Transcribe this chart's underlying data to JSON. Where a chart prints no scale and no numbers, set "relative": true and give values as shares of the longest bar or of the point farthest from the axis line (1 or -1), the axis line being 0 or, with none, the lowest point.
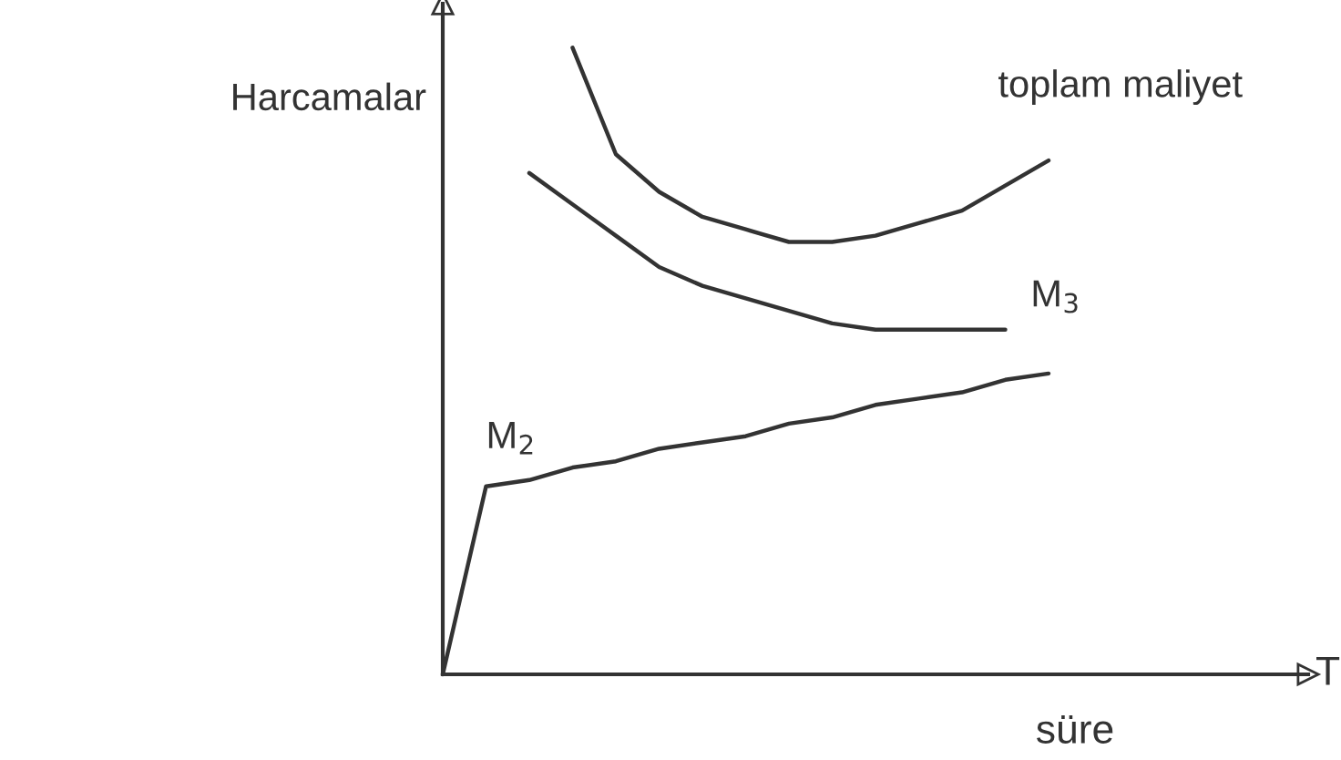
{
  "chart_data": {
    "type": "line",
    "relative": true,
    "xlabel": "süre",
    "ylabel": "Harcamalar",
    "annotations": [
      "T"
    ],
    "line_style": "solid",
    "marker": "none",
    "categories": [
      null,
      null,
      null,
      null,
      null,
      null,
      null,
      null,
      null,
      null,
      null,
      null,
      null,
      null,
      null,
      null,
      null,
      null,
      null,
      null,
      null
    ],
    "series": [
      {
        "name": "toplam maliyet",
        "color": "#333333",
        "values": [
          null,
          null,
          null,
          1,
          0.83,
          0.77,
          0.73,
          0.71,
          0.69,
          0.69,
          0.7,
          0.72,
          0.74,
          0.78,
          0.82,
          null,
          null,
          null,
          null,
          null,
          null
        ]
      },
      {
        "name": "M$_{3}$",
        "color": "#333333",
        "values": [
          null,
          null,
          0.8,
          0.75,
          0.7,
          0.65,
          0.62,
          0.6,
          0.58,
          0.56,
          0.55,
          0.55,
          0.55,
          0.55,
          null,
          null,
          null,
          null,
          null,
          null,
          null
        ]
      },
      {
        "name": "M$_{2}$",
        "color": "#333333",
        "values": [
          0,
          0.3,
          0.31,
          0.33,
          0.34,
          0.36,
          0.37,
          0.38,
          0.4,
          0.41,
          0.43,
          0.44,
          0.45,
          0.47,
          0.48,
          null,
          null,
          null,
          null,
          null,
          null
        ]
      }
    ]
  }
}
